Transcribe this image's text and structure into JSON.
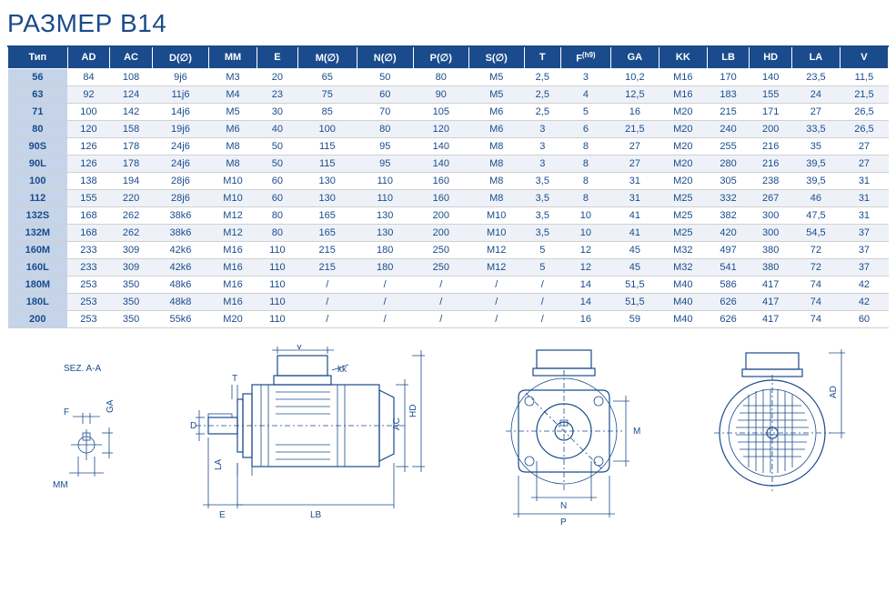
{
  "title": "РАЗМЕР B14",
  "table": {
    "columns": [
      "Тип",
      "AD",
      "AC",
      "D(∅)",
      "MM",
      "E",
      "M(∅)",
      "N(∅)",
      "P(∅)",
      "S(∅)",
      "T",
      "F",
      "GA",
      "KK",
      "LB",
      "HD",
      "LA",
      "V"
    ],
    "f_sup": "(h9)",
    "header_bg": "#1a4b8c",
    "header_fg": "#ffffff",
    "rowlabel_bg": "#c5d4e8",
    "even_bg": "#eef2f8",
    "odd_bg": "#ffffff",
    "text_color": "#1a4b8c",
    "font_size": 11,
    "rows": [
      [
        "56",
        "84",
        "108",
        "9j6",
        "M3",
        "20",
        "65",
        "50",
        "80",
        "M5",
        "2,5",
        "3",
        "10,2",
        "M16",
        "170",
        "140",
        "23,5",
        "11,5"
      ],
      [
        "63",
        "92",
        "124",
        "11j6",
        "M4",
        "23",
        "75",
        "60",
        "90",
        "M5",
        "2,5",
        "4",
        "12,5",
        "M16",
        "183",
        "155",
        "24",
        "21,5"
      ],
      [
        "71",
        "100",
        "142",
        "14j6",
        "M5",
        "30",
        "85",
        "70",
        "105",
        "M6",
        "2,5",
        "5",
        "16",
        "M20",
        "215",
        "171",
        "27",
        "26,5"
      ],
      [
        "80",
        "120",
        "158",
        "19j6",
        "M6",
        "40",
        "100",
        "80",
        "120",
        "M6",
        "3",
        "6",
        "21,5",
        "M20",
        "240",
        "200",
        "33,5",
        "26,5"
      ],
      [
        "90S",
        "126",
        "178",
        "24j6",
        "M8",
        "50",
        "115",
        "95",
        "140",
        "M8",
        "3",
        "8",
        "27",
        "M20",
        "255",
        "216",
        "35",
        "27"
      ],
      [
        "90L",
        "126",
        "178",
        "24j6",
        "M8",
        "50",
        "115",
        "95",
        "140",
        "M8",
        "3",
        "8",
        "27",
        "M20",
        "280",
        "216",
        "39,5",
        "27"
      ],
      [
        "100",
        "138",
        "194",
        "28j6",
        "M10",
        "60",
        "130",
        "110",
        "160",
        "M8",
        "3,5",
        "8",
        "31",
        "M20",
        "305",
        "238",
        "39,5",
        "31"
      ],
      [
        "112",
        "155",
        "220",
        "28j6",
        "M10",
        "60",
        "130",
        "110",
        "160",
        "M8",
        "3,5",
        "8",
        "31",
        "M25",
        "332",
        "267",
        "46",
        "31"
      ],
      [
        "132S",
        "168",
        "262",
        "38k6",
        "M12",
        "80",
        "165",
        "130",
        "200",
        "M10",
        "3,5",
        "10",
        "41",
        "M25",
        "382",
        "300",
        "47,5",
        "31"
      ],
      [
        "132M",
        "168",
        "262",
        "38k6",
        "M12",
        "80",
        "165",
        "130",
        "200",
        "M10",
        "3,5",
        "10",
        "41",
        "M25",
        "420",
        "300",
        "54,5",
        "37"
      ],
      [
        "160M",
        "233",
        "309",
        "42k6",
        "M16",
        "110",
        "215",
        "180",
        "250",
        "M12",
        "5",
        "12",
        "45",
        "M32",
        "497",
        "380",
        "72",
        "37"
      ],
      [
        "160L",
        "233",
        "309",
        "42k6",
        "M16",
        "110",
        "215",
        "180",
        "250",
        "M12",
        "5",
        "12",
        "45",
        "M32",
        "541",
        "380",
        "72",
        "37"
      ],
      [
        "180M",
        "253",
        "350",
        "48k6",
        "M16",
        "110",
        "/",
        "/",
        "/",
        "/",
        "/",
        "14",
        "51,5",
        "M40",
        "586",
        "417",
        "74",
        "42"
      ],
      [
        "180L",
        "253",
        "350",
        "48k8",
        "M16",
        "110",
        "/",
        "/",
        "/",
        "/",
        "/",
        "14",
        "51,5",
        "M40",
        "626",
        "417",
        "74",
        "42"
      ],
      [
        "200",
        "253",
        "350",
        "55k6",
        "M20",
        "110",
        "/",
        "/",
        "/",
        "/",
        "/",
        "16",
        "59",
        "M40",
        "626",
        "417",
        "74",
        "60"
      ]
    ]
  },
  "diagrams": {
    "stroke": "#1a4b8c",
    "section": {
      "title": "SEZ. A-A",
      "labels": {
        "F": "F",
        "GA": "GA",
        "MM": "MM"
      }
    },
    "side": {
      "labels": {
        "V": "V",
        "kk": "kk",
        "T": "T",
        "D": "D",
        "LA": "LA",
        "E": "E",
        "LB": "LB",
        "AC": "AC",
        "HD": "HD"
      }
    },
    "front": {
      "labels": {
        "M": "M",
        "N": "N",
        "P": "P"
      }
    },
    "rear": {
      "labels": {
        "AD": "AD"
      }
    }
  }
}
